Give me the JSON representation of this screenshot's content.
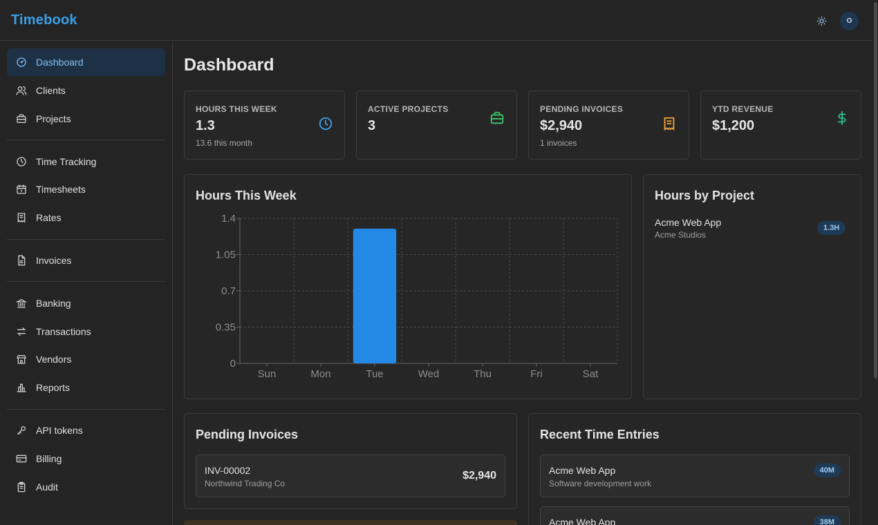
{
  "app": {
    "brand": "Timebook",
    "avatar_initial": "O"
  },
  "sidebar": {
    "items": [
      {
        "label": "Dashboard",
        "icon": "gauge-icon",
        "active": true
      },
      {
        "label": "Clients",
        "icon": "users-icon"
      },
      {
        "label": "Projects",
        "icon": "briefcase-icon"
      },
      {
        "label": "Time Tracking",
        "icon": "clock-icon"
      },
      {
        "label": "Timesheets",
        "icon": "calendar-icon"
      },
      {
        "label": "Rates",
        "icon": "receipt-icon"
      },
      {
        "label": "Invoices",
        "icon": "file-text-icon"
      },
      {
        "label": "Banking",
        "icon": "bank-icon"
      },
      {
        "label": "Transactions",
        "icon": "arrows-exchange-icon"
      },
      {
        "label": "Vendors",
        "icon": "store-icon"
      },
      {
        "label": "Reports",
        "icon": "bar-chart-icon"
      },
      {
        "label": "API tokens",
        "icon": "key-icon"
      },
      {
        "label": "Billing",
        "icon": "credit-card-icon"
      },
      {
        "label": "Audit",
        "icon": "clipboard-icon"
      }
    ]
  },
  "main": {
    "title": "Dashboard",
    "stats": [
      {
        "label": "HOURS THIS WEEK",
        "value": "1.3",
        "sub": "13.6 this month",
        "icon": "clock-icon",
        "color": "#3b9fe8"
      },
      {
        "label": "ACTIVE PROJECTS",
        "value": "3",
        "sub": "",
        "icon": "briefcase-icon",
        "color": "#3fc56a"
      },
      {
        "label": "PENDING INVOICES",
        "value": "$2,940",
        "sub": "1 invoices",
        "icon": "receipt-icon",
        "color": "#f0a13a"
      },
      {
        "label": "YTD REVENUE",
        "value": "$1,200",
        "sub": "",
        "icon": "dollar-icon",
        "color": "#2fc08a"
      }
    ],
    "hours_chart_title": "Hours This Week",
    "hours_by_project": {
      "title": "Hours by Project",
      "items": [
        {
          "name": "Acme Web App",
          "client": "Acme Studios",
          "hours": "1.3H"
        }
      ]
    },
    "pending_invoices": {
      "title": "Pending Invoices",
      "items": [
        {
          "number": "INV-00002",
          "client": "Northwind Trading Co",
          "amount": "$2,940"
        }
      ]
    },
    "recent_entries": {
      "title": "Recent Time Entries",
      "items": [
        {
          "project": "Acme Web App",
          "description": "Software development work",
          "duration": "40M"
        },
        {
          "project": "Acme Web App",
          "description": "",
          "duration": "38M"
        }
      ]
    }
  },
  "chart_data": {
    "type": "bar",
    "categories": [
      "Sun",
      "Mon",
      "Tue",
      "Wed",
      "Thu",
      "Fri",
      "Sat"
    ],
    "values": [
      0,
      0,
      1.3,
      0,
      0,
      0,
      0
    ],
    "yticks": [
      "0",
      "0.35",
      "0.7",
      "1.05",
      "1.4"
    ],
    "ylim": [
      0,
      1.4
    ],
    "grid": true,
    "bar_color": "#2389e6"
  }
}
